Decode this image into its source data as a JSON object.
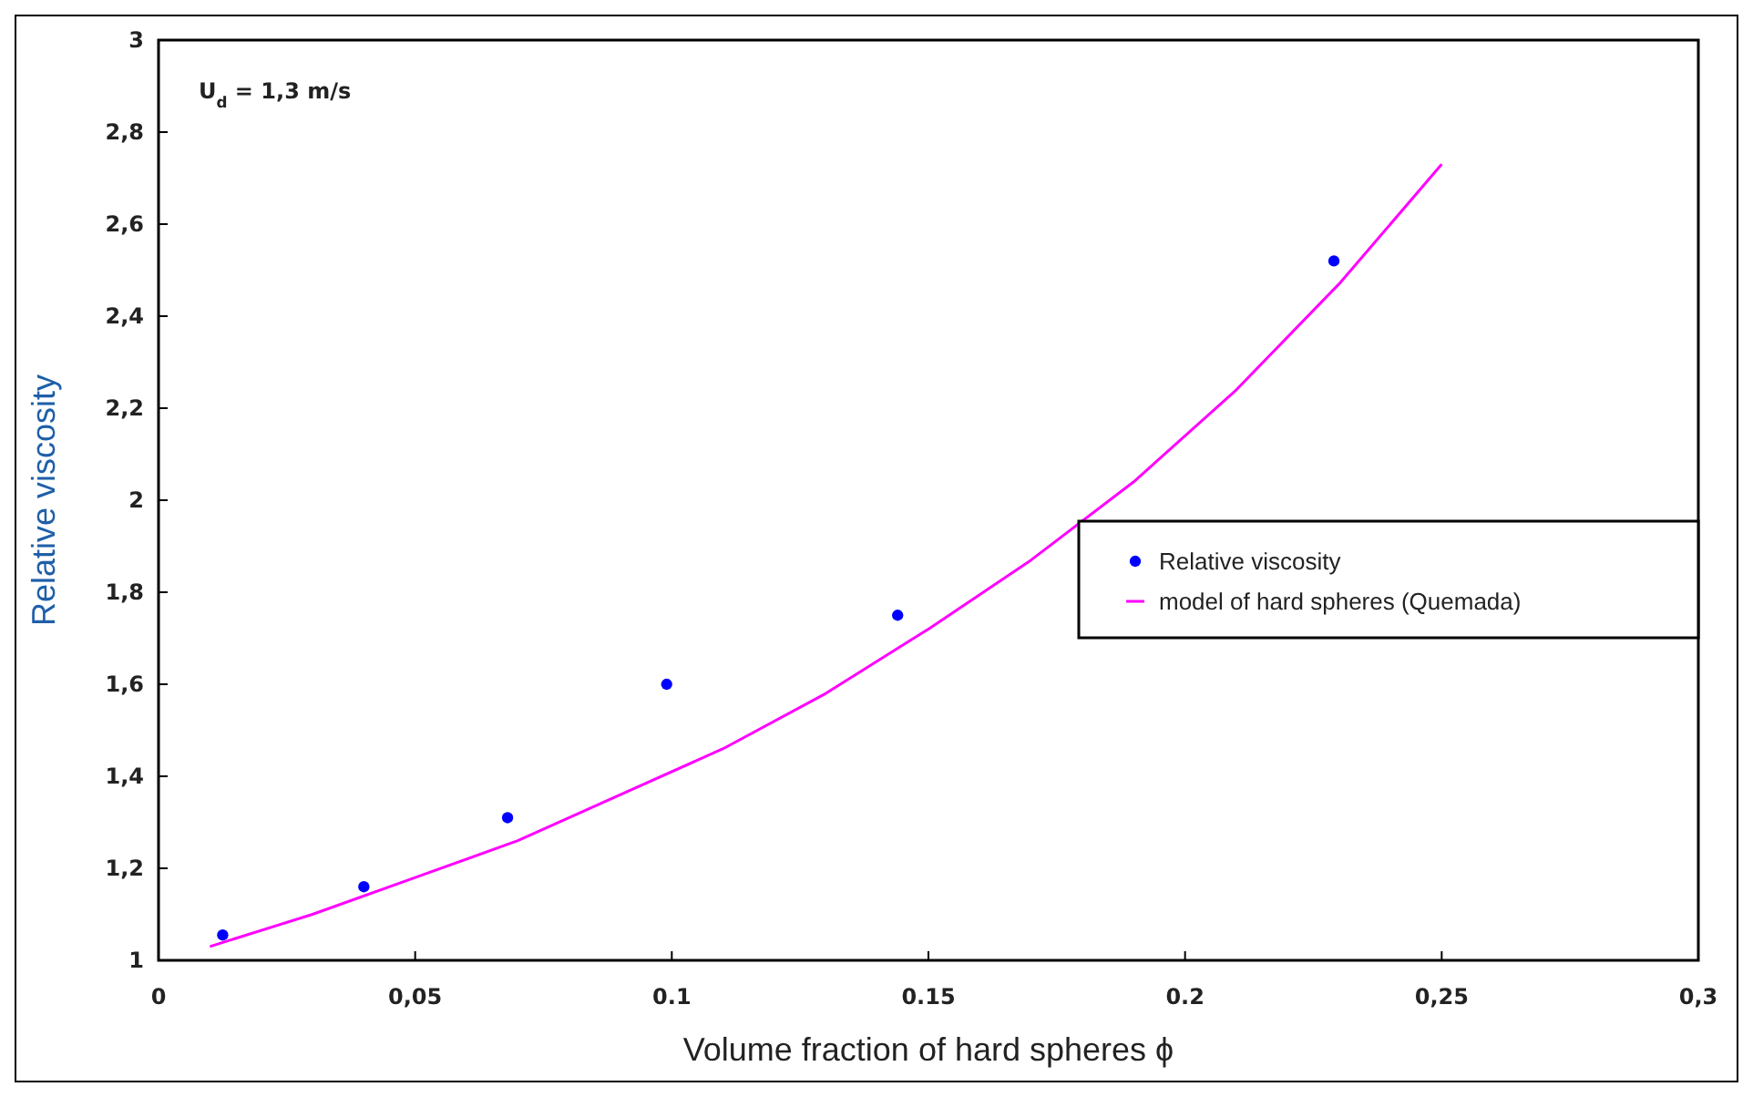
{
  "chart_data": {
    "type": "scatter",
    "xlabel": "Volume fraction of hard spheres ϕ",
    "ylabel": "Relative viscosity",
    "annotations": [
      "U$_{d}$ = 1,3 m/s"
    ],
    "xlim": [
      0,
      0.3
    ],
    "ylim": [
      1,
      3
    ],
    "xticks": [
      0,
      {
        "value": 0.05,
        "label": "0,05"
      },
      0.1,
      0.15,
      0.2,
      {
        "value": 0.25,
        "label": "0,25"
      },
      {
        "value": 0.3,
        "label": "0,3"
      }
    ],
    "yticks": [
      1,
      {
        "value": 1.2,
        "label": "1,2"
      },
      {
        "value": 1.4,
        "label": "1,4"
      },
      {
        "value": 1.6,
        "label": "1,6"
      },
      {
        "value": 1.8,
        "label": "1,8"
      },
      2,
      {
        "value": 2.2,
        "label": "2,2"
      },
      {
        "value": 2.4,
        "label": "2,4"
      },
      {
        "value": 2.6,
        "label": "2,6"
      },
      {
        "value": 2.8,
        "label": "2,8"
      },
      3
    ],
    "legend": "right",
    "grid": false,
    "series": [
      {
        "name": "Relative viscosity",
        "marker": "circle",
        "color": "#0000ff",
        "x": [
          0.0125,
          0.04,
          0.068,
          0.099,
          0.144,
          0.229
        ],
        "values": [
          1.055,
          1.16,
          1.31,
          1.6,
          1.75,
          2.52
        ]
      },
      {
        "name": "model of hard spheres (Quemada)",
        "type": "line",
        "marker": "none",
        "line_style": "solid",
        "color": "#ff00ff",
        "x": [
          0.01,
          0.03,
          0.05,
          0.07,
          0.09,
          0.11,
          0.13,
          0.15,
          0.17,
          0.19,
          0.21,
          0.23,
          0.25
        ],
        "values": [
          1.03,
          1.1,
          1.18,
          1.26,
          1.36,
          1.46,
          1.58,
          1.72,
          1.87,
          2.04,
          2.24,
          2.47,
          2.73
        ]
      }
    ]
  }
}
